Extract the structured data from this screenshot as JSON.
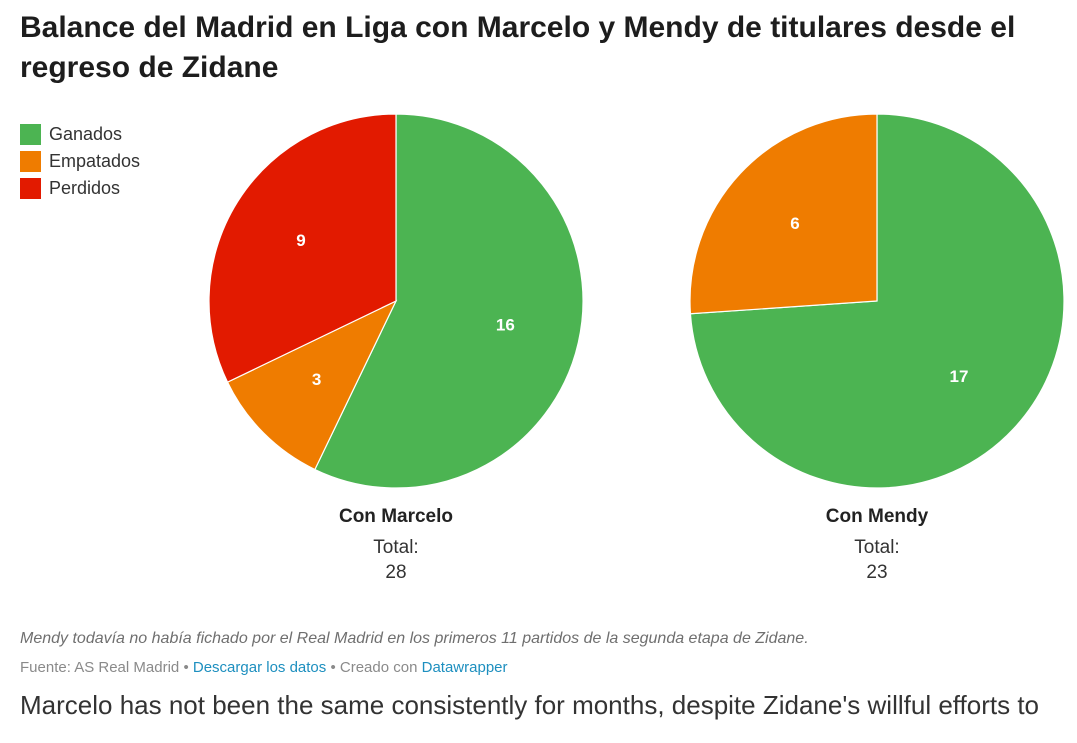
{
  "chart_data": {
    "type": "pie",
    "title": "Balance del Madrid en Liga con Marcelo y Mendy de titulares desde el regreso de Zidane",
    "categories": [
      "Ganados",
      "Empatados",
      "Perdidos"
    ],
    "colors": [
      "#4cb452",
      "#ef7c00",
      "#e21a00"
    ],
    "pies": [
      {
        "name": "Con Marcelo",
        "total_label": "Total:",
        "total": 28,
        "values": [
          16,
          3,
          9
        ]
      },
      {
        "name": "Con Mendy",
        "total_label": "Total:",
        "total": 23,
        "values": [
          17,
          6,
          null
        ]
      }
    ]
  },
  "notes": {
    "note": "Mendy todavía no había fichado por el Real Madrid en los primeros 11 partidos de la segunda etapa de Zidane.",
    "source": "Fuente: AS Real Madrid",
    "separators": [
      "•",
      "•"
    ],
    "download": "Descargar los datos",
    "created": "Creado con",
    "tool": "Datawrapper"
  },
  "article": {
    "text": "Marcelo has not been the same consistently for months, despite Zidane's willful efforts to"
  }
}
